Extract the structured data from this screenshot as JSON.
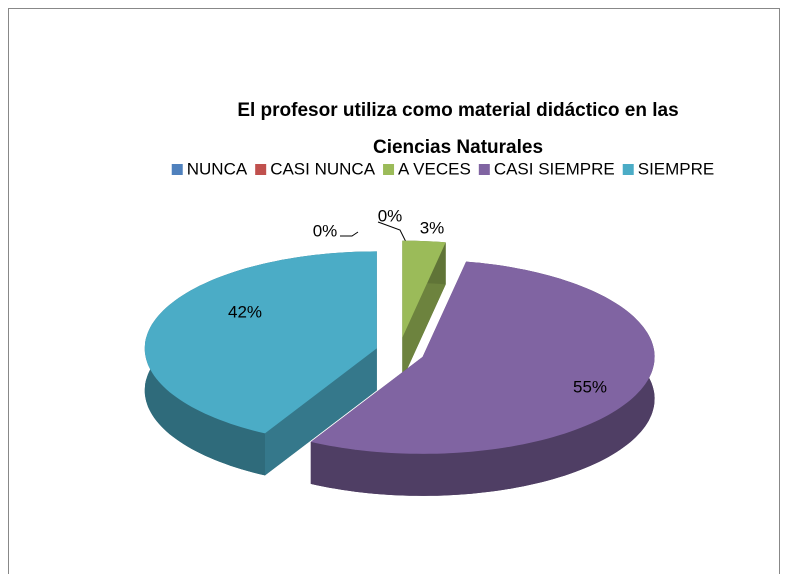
{
  "chart_data": {
    "type": "pie",
    "title": "El profesor utiliza como material didáctico en las Ciencias Naturales",
    "categories": [
      "NUNCA",
      "CASI NUNCA",
      "A VECES",
      "CASI SIEMPRE",
      "SIEMPRE"
    ],
    "values": [
      0,
      0,
      3,
      55,
      42
    ],
    "value_labels": [
      "0%",
      "0%",
      "3%",
      "55%",
      "42%"
    ],
    "colors": [
      "#4F81BD",
      "#C0504D",
      "#9BBB59",
      "#8064A2",
      "#4BACC6"
    ],
    "legend": "top"
  }
}
